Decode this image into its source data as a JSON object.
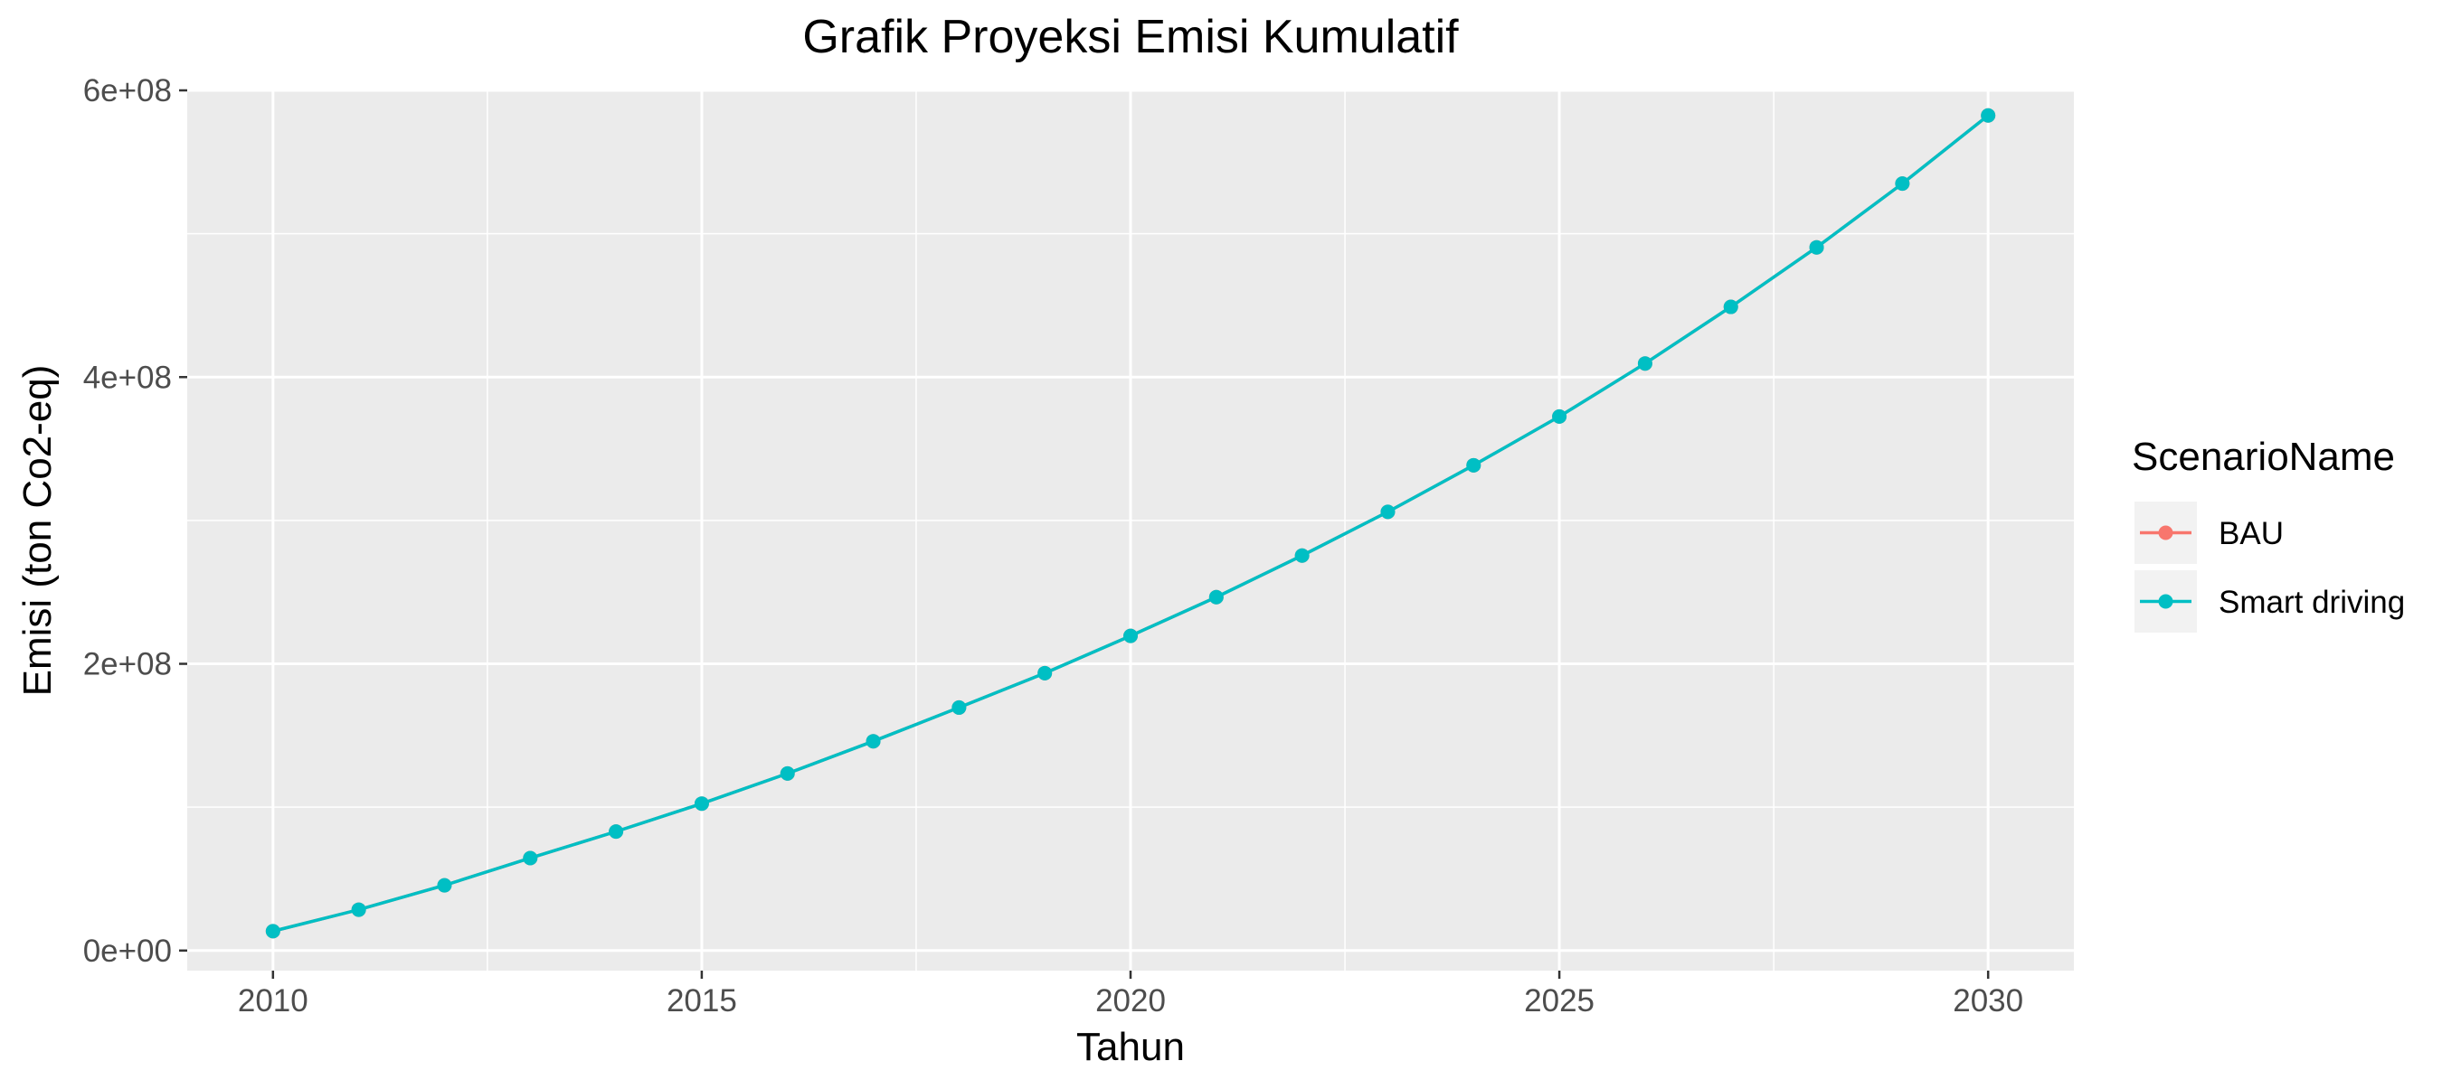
{
  "chart_data": {
    "type": "line",
    "title": "Grafik Proyeksi Emisi Kumulatif",
    "xlabel": "Tahun",
    "ylabel": "Emisi (ton Co2-eq)",
    "xlim": [
      2009,
      2031
    ],
    "ylim": [
      -14000000,
      600000000
    ],
    "x_ticks": [
      2010,
      2015,
      2020,
      2025,
      2030
    ],
    "x_tick_labels": [
      "2010",
      "2015",
      "2020",
      "2025",
      "2030"
    ],
    "y_ticks": [
      0,
      200000000,
      400000000,
      600000000
    ],
    "y_tick_labels": [
      "0e+00",
      "2e+08",
      "4e+08",
      "6e+08"
    ],
    "grid": true,
    "legend_position": "right",
    "legend_title": "ScenarioName",
    "x": [
      2010,
      2011,
      2012,
      2013,
      2014,
      2015,
      2016,
      2017,
      2018,
      2019,
      2020,
      2021,
      2022,
      2023,
      2024,
      2025,
      2026,
      2027,
      2028,
      2029,
      2030
    ],
    "series": [
      {
        "name": "BAU",
        "color": "#F8766D",
        "values": [
          13500000,
          28500000,
          45500000,
          64500000,
          83000000,
          102500000,
          123500000,
          146000000,
          169500000,
          193500000,
          219500000,
          246500000,
          275500000,
          306000000,
          338500000,
          372500000,
          409500000,
          449000000,
          490500000,
          535000000,
          582500000
        ]
      },
      {
        "name": "Smart driving",
        "color": "#00BFC4",
        "values": [
          13500000,
          28500000,
          45500000,
          64500000,
          83000000,
          102500000,
          123500000,
          146000000,
          169500000,
          193500000,
          219500000,
          246500000,
          275500000,
          306000000,
          338500000,
          372500000,
          409500000,
          449000000,
          490500000,
          535000000,
          582500000
        ]
      }
    ]
  }
}
